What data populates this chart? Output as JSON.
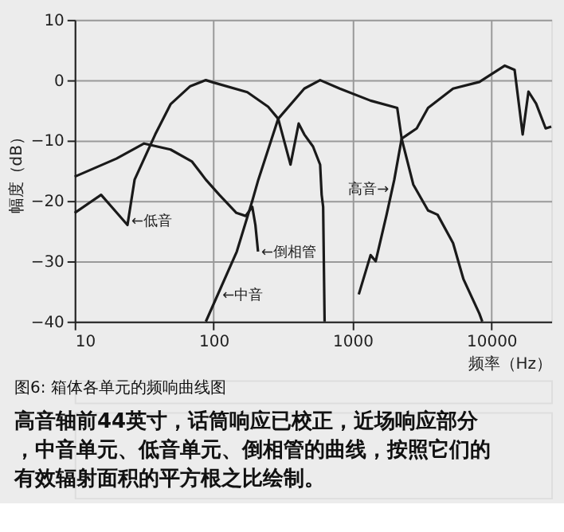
{
  "chart_data": {
    "type": "line",
    "xlabel": "频率（Hz）",
    "ylabel": "幅度（dB）",
    "log": "x",
    "xlim": [
      10,
      27000
    ],
    "xticks": [
      10,
      100,
      1000,
      10000
    ],
    "ylim": [
      -40,
      10
    ],
    "yticks": [
      10,
      0,
      -10,
      -20,
      -30,
      -40
    ],
    "grid": true,
    "marker": "none",
    "line_style": "solid",
    "series": [
      {
        "color": "#1a1a1a",
        "x": [
          10,
          15.5,
          24,
          27,
          38,
          49,
          68,
          88,
          100,
          175,
          247,
          292,
          358,
          410,
          450,
          520,
          585,
          600,
          615,
          630
        ],
        "values": [
          -22,
          -19,
          -24,
          -16.5,
          -9,
          -4,
          -1,
          0,
          -0.4,
          -2,
          -4.4,
          -6.4,
          -14,
          -7.2,
          -9,
          -11,
          -14,
          -19,
          -21,
          -40
        ]
      },
      {
        "color": "#1a1a1a",
        "x": [
          10,
          20,
          31.6,
          49,
          70,
          88,
          110,
          146,
          170,
          190,
          200,
          209
        ],
        "values": [
          -16,
          -13,
          -10.5,
          -11.5,
          -13.5,
          -16.5,
          -19,
          -22,
          -22.5,
          -21,
          -24,
          -28.4
        ]
      },
      {
        "color": "#1a1a1a",
        "x": [
          88,
          147,
          190,
          210,
          292,
          450,
          585,
          810,
          1350,
          2100,
          2260,
          2740,
          3500,
          4100,
          5300,
          6300,
          8200,
          8600
        ],
        "values": [
          -40,
          -28.4,
          -20,
          -16.5,
          -6.4,
          -1.4,
          0,
          -1.4,
          -3.4,
          -4.6,
          -9.7,
          -17.3,
          -21.6,
          -22.3,
          -27,
          -33,
          -38.7,
          -40
        ]
      },
      {
        "color": "#1a1a1a",
        "x": [
          1110,
          1350,
          1470,
          1760,
          2000,
          2260,
          2900,
          3500,
          5300,
          8200,
          12500,
          14700,
          16800,
          18500,
          21000,
          24600,
          27000
        ],
        "values": [
          -35.5,
          -29,
          -30,
          -22.3,
          -16.5,
          -9.7,
          -8,
          -4.6,
          -1.4,
          -0.3,
          2.4,
          1.7,
          -9,
          -1.9,
          -3.9,
          -8,
          -7.7
        ]
      }
    ],
    "annotations": [
      {
        "text": "←低音",
        "x": 24.3,
        "y": -23.3
      },
      {
        "text": "←倒相管",
        "x": 209,
        "y": -28.4
      },
      {
        "text": "←中音",
        "x": 110,
        "y": -35.6
      },
      {
        "text": "高音→",
        "x": 1930,
        "y": -18
      },
      "图6: 箱体各单元的频响曲线图",
      "高音轴前44英寸，话筒响应已校正，近场响应部分，中音单元、低音单元、倒相管的曲线，按照它们的有效辐射面积的平方根之比绘制。"
    ]
  }
}
